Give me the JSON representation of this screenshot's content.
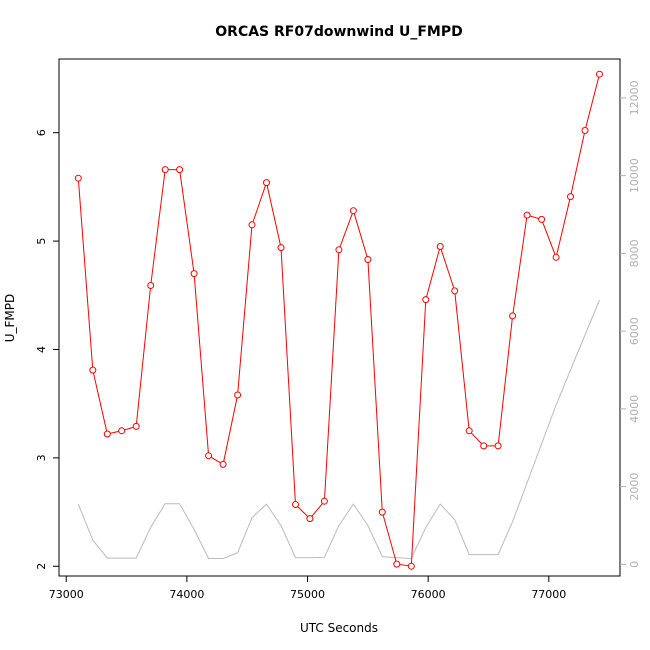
{
  "chart_data": {
    "type": "line",
    "title": "ORCAS RF07downwind U_FMPD",
    "xlabel": "UTC Seconds",
    "ylabel": "U_FMPD",
    "xlim": [
      72940,
      77590
    ],
    "ylim": [
      1.91,
      6.68
    ],
    "y2lim": [
      -300,
      13000
    ],
    "x_ticks": [
      73000,
      74000,
      75000,
      76000,
      77000
    ],
    "x_tick_labels": [
      "73000",
      "74000",
      "75000",
      "76000",
      "77000"
    ],
    "y_ticks": [
      2,
      3,
      4,
      5,
      6
    ],
    "y_tick_labels": [
      "2",
      "3",
      "4",
      "5",
      "6"
    ],
    "y2_ticks": [
      0,
      2000,
      4000,
      6000,
      8000,
      10000,
      12000
    ],
    "y2_tick_labels": [
      "0",
      "2000",
      "4000",
      "6000",
      "8000",
      "10000",
      "12000"
    ],
    "grid": false,
    "series": [
      {
        "axis": "left",
        "color": "#ff0000",
        "marker": "open-circle",
        "x": [
          73100,
          73220,
          73340,
          73460,
          73580,
          73700,
          73820,
          73940,
          74060,
          74180,
          74300,
          74420,
          74540,
          74660,
          74780,
          74900,
          75020,
          75140,
          75260,
          75380,
          75500,
          75620,
          75740,
          75860,
          75980,
          76100,
          76220,
          76340,
          76460,
          76580,
          76700,
          76820,
          76940,
          77060,
          77180,
          77300,
          77420
        ],
        "values": [
          5.58,
          3.81,
          3.22,
          3.25,
          3.29,
          4.59,
          5.66,
          5.66,
          4.7,
          3.02,
          2.94,
          3.58,
          5.15,
          5.54,
          4.94,
          2.57,
          2.44,
          2.6,
          4.92,
          5.28,
          4.83,
          2.5,
          2.02,
          2.0,
          4.46,
          4.95,
          4.54,
          3.25,
          3.11,
          3.11,
          4.31,
          5.24,
          5.2,
          4.85,
          5.41,
          6.02,
          6.54
        ]
      },
      {
        "axis": "right",
        "color": "#bbbbbb",
        "marker": "none",
        "x": [
          73100,
          73220,
          73340,
          73460,
          73580,
          73700,
          73820,
          73940,
          74060,
          74180,
          74300,
          74420,
          74540,
          74660,
          74780,
          74900,
          75020,
          75140,
          75260,
          75380,
          75500,
          75620,
          75740,
          75860,
          75980,
          76100,
          76220,
          76340,
          76460,
          76580,
          76700,
          76820,
          76940,
          77060,
          77180,
          77300,
          77420
        ],
        "values": [
          1550,
          620,
          160,
          160,
          160,
          950,
          1560,
          1560,
          900,
          150,
          150,
          300,
          1200,
          1550,
          1000,
          170,
          170,
          180,
          1000,
          1550,
          1000,
          200,
          170,
          150,
          950,
          1550,
          1150,
          250,
          250,
          250,
          1100,
          2100,
          3100,
          4100,
          5000,
          5900,
          6800
        ]
      }
    ]
  }
}
